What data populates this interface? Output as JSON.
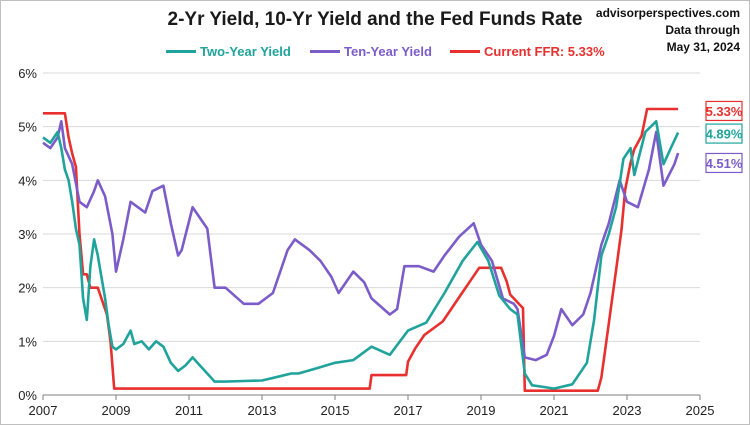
{
  "header": {
    "title": "2-Yr Yield, 10-Yr Yield and the Fed Funds Rate",
    "source_line1": "advisorperspectives.com",
    "source_line2": "Data through",
    "source_line3": "May 31, 2024"
  },
  "colors": {
    "two_year": "#20a39b",
    "ten_year": "#7b5cc9",
    "ffr": "#e8302f",
    "grid": "#d9d9d9"
  },
  "chart_data": {
    "type": "line",
    "title": "2-Yr Yield, 10-Yr Yield and the Fed Funds Rate",
    "xlabel": "",
    "ylabel": "",
    "xlim": [
      2007,
      2025
    ],
    "ylim": [
      0,
      6
    ],
    "x_ticks": [
      "2007",
      "2009",
      "2011",
      "2013",
      "2015",
      "2017",
      "2019",
      "2021",
      "2023",
      "2025"
    ],
    "y_ticks": [
      "0%",
      "1%",
      "2%",
      "3%",
      "4%",
      "5%",
      "6%"
    ],
    "grid": "horizontal",
    "legend_position": "top",
    "series": [
      {
        "name": "Two-Year Yield",
        "color": "#20a39b",
        "x": [
          2007.0,
          2007.2,
          2007.4,
          2007.5,
          2007.6,
          2007.7,
          2007.8,
          2007.9,
          2008.0,
          2008.1,
          2008.2,
          2008.3,
          2008.4,
          2008.5,
          2008.6,
          2008.7,
          2008.8,
          2008.9,
          2009.0,
          2009.2,
          2009.4,
          2009.5,
          2009.7,
          2009.9,
          2010.1,
          2010.3,
          2010.5,
          2010.7,
          2010.9,
          2011.1,
          2011.3,
          2011.5,
          2011.7,
          2012.0,
          2012.5,
          2013.0,
          2013.5,
          2013.8,
          2014.0,
          2014.5,
          2015.0,
          2015.5,
          2016.0,
          2016.5,
          2017.0,
          2017.5,
          2018.0,
          2018.5,
          2018.9,
          2019.2,
          2019.5,
          2019.8,
          2020.0,
          2020.2,
          2020.4,
          2020.7,
          2021.0,
          2021.5,
          2021.9,
          2022.1,
          2022.3,
          2022.5,
          2022.7,
          2022.9,
          2023.1,
          2023.2,
          2023.5,
          2023.8,
          2024.0,
          2024.2,
          2024.4
        ],
        "values": [
          4.8,
          4.7,
          4.9,
          4.6,
          4.2,
          4.0,
          3.6,
          3.1,
          2.8,
          1.8,
          1.4,
          2.4,
          2.9,
          2.6,
          2.2,
          1.8,
          1.3,
          0.9,
          0.85,
          0.95,
          1.2,
          0.95,
          1.0,
          0.85,
          1.0,
          0.9,
          0.6,
          0.45,
          0.55,
          0.7,
          0.55,
          0.4,
          0.25,
          0.25,
          0.26,
          0.27,
          0.35,
          0.4,
          0.4,
          0.5,
          0.6,
          0.65,
          0.9,
          0.75,
          1.2,
          1.35,
          1.9,
          2.5,
          2.85,
          2.5,
          1.85,
          1.6,
          1.5,
          0.4,
          0.18,
          0.15,
          0.12,
          0.2,
          0.6,
          1.4,
          2.6,
          3.0,
          3.5,
          4.4,
          4.6,
          4.1,
          4.9,
          5.1,
          4.3,
          4.6,
          4.89
        ]
      },
      {
        "name": "Ten-Year Yield",
        "color": "#7b5cc9",
        "x": [
          2007.0,
          2007.2,
          2007.4,
          2007.5,
          2007.6,
          2007.8,
          2008.0,
          2008.2,
          2008.4,
          2008.5,
          2008.7,
          2008.9,
          2009.0,
          2009.2,
          2009.4,
          2009.6,
          2009.8,
          2010.0,
          2010.3,
          2010.5,
          2010.7,
          2010.8,
          2011.1,
          2011.3,
          2011.5,
          2011.7,
          2012.0,
          2012.5,
          2012.9,
          2013.3,
          2013.7,
          2013.9,
          2014.3,
          2014.6,
          2014.9,
          2015.1,
          2015.5,
          2015.8,
          2016.0,
          2016.5,
          2016.7,
          2016.9,
          2017.3,
          2017.7,
          2018.0,
          2018.4,
          2018.8,
          2019.0,
          2019.3,
          2019.6,
          2019.9,
          2020.0,
          2020.2,
          2020.5,
          2020.8,
          2021.0,
          2021.2,
          2021.5,
          2021.8,
          2022.0,
          2022.3,
          2022.5,
          2022.8,
          2023.0,
          2023.3,
          2023.6,
          2023.8,
          2024.0,
          2024.3,
          2024.4
        ],
        "values": [
          4.7,
          4.6,
          4.8,
          5.1,
          4.6,
          4.3,
          3.6,
          3.5,
          3.8,
          4.0,
          3.7,
          3.0,
          2.3,
          2.9,
          3.6,
          3.5,
          3.4,
          3.8,
          3.9,
          3.2,
          2.6,
          2.7,
          3.5,
          3.3,
          3.1,
          2.0,
          2.0,
          1.7,
          1.7,
          1.9,
          2.7,
          2.9,
          2.7,
          2.5,
          2.2,
          1.9,
          2.3,
          2.1,
          1.8,
          1.5,
          1.6,
          2.4,
          2.4,
          2.3,
          2.6,
          2.95,
          3.2,
          2.8,
          2.5,
          1.8,
          1.7,
          1.6,
          0.7,
          0.65,
          0.75,
          1.1,
          1.6,
          1.3,
          1.5,
          1.9,
          2.8,
          3.2,
          4.0,
          3.6,
          3.5,
          4.2,
          4.9,
          3.9,
          4.3,
          4.51
        ]
      },
      {
        "name": "Current FFR: 5.33%",
        "color": "#e8302f",
        "x": [
          2007.0,
          2007.6,
          2007.7,
          2007.8,
          2007.9,
          2008.0,
          2008.1,
          2008.2,
          2008.3,
          2008.5,
          2008.75,
          2008.85,
          2008.95,
          2015.95,
          2016.0,
          2016.95,
          2017.0,
          2017.2,
          2017.45,
          2017.95,
          2018.2,
          2018.45,
          2018.7,
          2018.95,
          2019.55,
          2019.7,
          2019.8,
          2020.15,
          2020.2,
          2022.2,
          2022.3,
          2022.4,
          2022.55,
          2022.7,
          2022.85,
          2022.95,
          2023.1,
          2023.2,
          2023.4,
          2023.55,
          2024.4
        ],
        "values": [
          5.25,
          5.25,
          4.8,
          4.5,
          4.25,
          3.0,
          2.25,
          2.25,
          2.0,
          2.0,
          1.5,
          1.0,
          0.12,
          0.12,
          0.37,
          0.37,
          0.62,
          0.87,
          1.12,
          1.37,
          1.62,
          1.87,
          2.12,
          2.37,
          2.37,
          2.12,
          1.87,
          1.62,
          0.08,
          0.08,
          0.33,
          0.83,
          1.58,
          2.33,
          3.08,
          3.83,
          4.33,
          4.58,
          4.83,
          5.33,
          5.33
        ]
      }
    ],
    "callouts": [
      {
        "label": "5.33%",
        "value": 5.33,
        "series": "Current FFR: 5.33%"
      },
      {
        "label": "4.89%",
        "value": 4.89,
        "series": "Two-Year Yield"
      },
      {
        "label": "4.51%",
        "value": 4.51,
        "series": "Ten-Year Yield"
      }
    ]
  }
}
